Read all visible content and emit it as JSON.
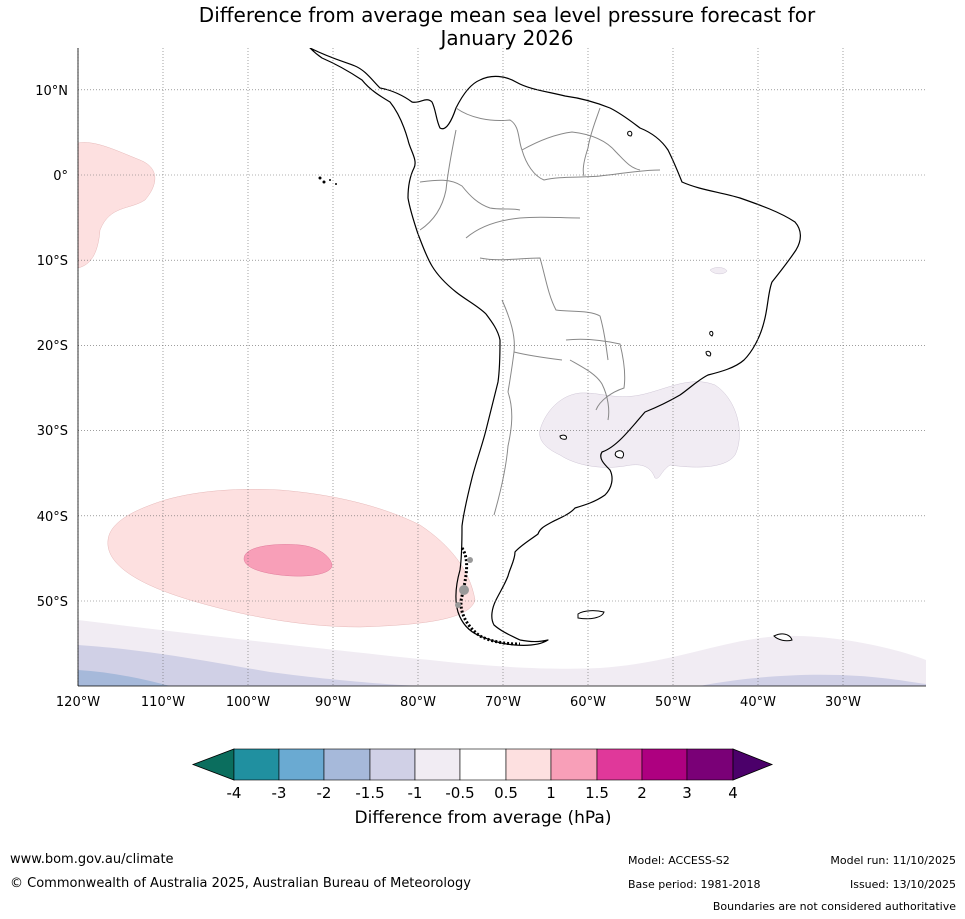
{
  "title_line1": "Difference from average mean sea level pressure forecast for",
  "title_line2": "January 2026",
  "map": {
    "lat_labels": [
      "10°N",
      "0°",
      "10°S",
      "20°S",
      "30°S",
      "40°S",
      "50°S"
    ],
    "lon_labels": [
      "120°W",
      "110°W",
      "100°W",
      "90°W",
      "80°W",
      "70°W",
      "60°W",
      "50°W",
      "40°W",
      "30°W"
    ],
    "lat_values": [
      10,
      0,
      -10,
      -20,
      -30,
      -40,
      -50
    ],
    "lon_values": [
      -120,
      -110,
      -100,
      -90,
      -80,
      -70,
      -60,
      -50,
      -40,
      -30
    ]
  },
  "colorbar": {
    "ticks": [
      "-4",
      "-3",
      "-2",
      "-1.5",
      "-1",
      "-0.5",
      "0.5",
      "1",
      "1.5",
      "2",
      "3",
      "4"
    ],
    "colors": [
      "#0b6e5e",
      "#2090a0",
      "#6aaad2",
      "#a6b9da",
      "#d0d0e6",
      "#f1ecf3",
      "#ffffff",
      "#fde0e0",
      "#f89fb8",
      "#e0389a",
      "#ae0080",
      "#7a0077",
      "#4b006a"
    ],
    "label": "Difference from average (hPa)"
  },
  "footer": {
    "url": "www.bom.gov.au/climate",
    "copyright": "© Commonwealth of Australia 2025, Australian Bureau of Meteorology",
    "model": "Model: ACCESS-S2",
    "base_period": "Base period: 1981-2018",
    "model_run": "Model run: 11/10/2025",
    "issued": "Issued: 13/10/2025",
    "disclaimer": "Boundaries are not considered authoritative"
  }
}
